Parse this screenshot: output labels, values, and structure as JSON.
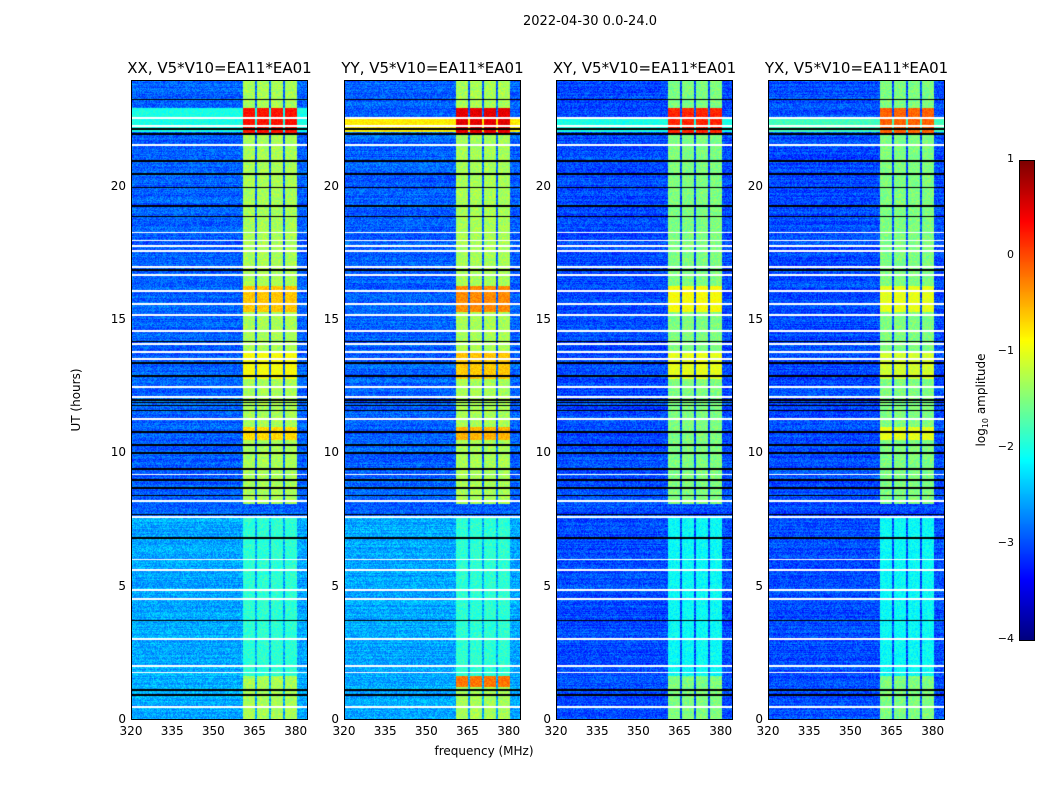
{
  "chart_data": {
    "type": "heatmap",
    "title": "2022-04-30 0.0-24.0",
    "xlabel": "frequency (MHz)",
    "ylabel": "UT (hours)",
    "xlim": [
      320,
      384.5
    ],
    "ylim": [
      0,
      24
    ],
    "xticks": [
      "320",
      "335",
      "350",
      "365",
      "380"
    ],
    "xtick_values": [
      320,
      335,
      350,
      365,
      380
    ],
    "yticks": [
      "0",
      "5",
      "10",
      "15",
      "20"
    ],
    "ytick_values": [
      0,
      5,
      10,
      15,
      20
    ],
    "colorbar": {
      "label": "log10 amplitude",
      "label_main": "log",
      "label_sub": "10",
      "label_rest": " amplitude",
      "range": [
        -4,
        1
      ],
      "ticks": [
        "−4",
        "−3",
        "−2",
        "−1",
        "0",
        "1"
      ],
      "tick_values": [
        -4,
        -3,
        -2,
        -1,
        0,
        1
      ],
      "colormap": "jet"
    },
    "panels": [
      {
        "title": "XX, V5*V10=EA11*EA01",
        "background": -2.9,
        "early_background": -2.55,
        "rfi_band_level": -1.3,
        "strong_rows": [
          [
            22.0,
            23.0,
            0.3
          ],
          [
            15.3,
            16.3,
            -0.6
          ],
          [
            10.5,
            11.0,
            -0.7
          ],
          [
            12.8,
            13.8,
            -0.9
          ]
        ],
        "low_band_rfi": [
          [
            22.1,
            23.0,
            -2.0
          ]
        ]
      },
      {
        "title": "YY, V5*V10=EA11*EA01",
        "background": -2.9,
        "early_background": -2.55,
        "rfi_band_level": -1.3,
        "strong_rows": [
          [
            22.0,
            23.0,
            0.5
          ],
          [
            15.3,
            16.3,
            -0.3
          ],
          [
            10.5,
            11.0,
            -0.5
          ],
          [
            12.8,
            13.8,
            -0.6
          ],
          [
            1.2,
            1.6,
            -0.2
          ]
        ],
        "low_band_rfi": [
          [
            22.1,
            22.6,
            -0.8
          ]
        ]
      },
      {
        "title": "XY, V5*V10=EA11*EA01",
        "background": -3.0,
        "early_background": -3.0,
        "rfi_band_level": -1.5,
        "strong_rows": [
          [
            22.0,
            23.0,
            0.2
          ],
          [
            15.3,
            16.3,
            -0.9
          ],
          [
            12.8,
            13.8,
            -1.0
          ]
        ],
        "low_band_rfi": [
          [
            22.1,
            22.6,
            -2.0
          ]
        ]
      },
      {
        "title": "YX, V5*V10=EA11*EA01",
        "background": -3.0,
        "early_background": -3.0,
        "rfi_band_level": -1.5,
        "strong_rows": [
          [
            22.0,
            23.0,
            -0.1
          ],
          [
            15.3,
            16.3,
            -1.0
          ],
          [
            12.8,
            13.8,
            -1.1
          ],
          [
            10.5,
            11.0,
            -1.0
          ]
        ],
        "low_band_rfi": [
          [
            22.1,
            22.6,
            -1.8
          ]
        ]
      }
    ],
    "rfi_channels_mhz": [
      [
        361,
        365.5
      ],
      [
        366.2,
        370.6
      ],
      [
        371.3,
        375.5
      ],
      [
        376.5,
        380.8
      ]
    ],
    "flagged_times_white": [
      0.45,
      1.75,
      2.0,
      3.0,
      4.5,
      4.85,
      5.6,
      6.0,
      7.6,
      8.2,
      9.2,
      11.3,
      12.1,
      12.5,
      13.55,
      13.8,
      14.1,
      14.6,
      15.2,
      15.6,
      16.1,
      16.7,
      17.0,
      17.6,
      17.8,
      18.0,
      18.3,
      21.6,
      22.3,
      22.6
    ],
    "flagged_times_black": [
      0.9,
      1.1,
      3.7,
      6.8,
      7.7,
      8.4,
      8.7,
      9.0,
      9.4,
      10.0,
      10.3,
      10.8,
      11.6,
      11.8,
      11.9,
      12.0,
      12.9,
      13.4,
      14.2,
      16.9,
      18.9,
      19.3,
      20.0,
      20.5,
      21.0,
      22.0,
      22.2,
      23.3
    ]
  }
}
